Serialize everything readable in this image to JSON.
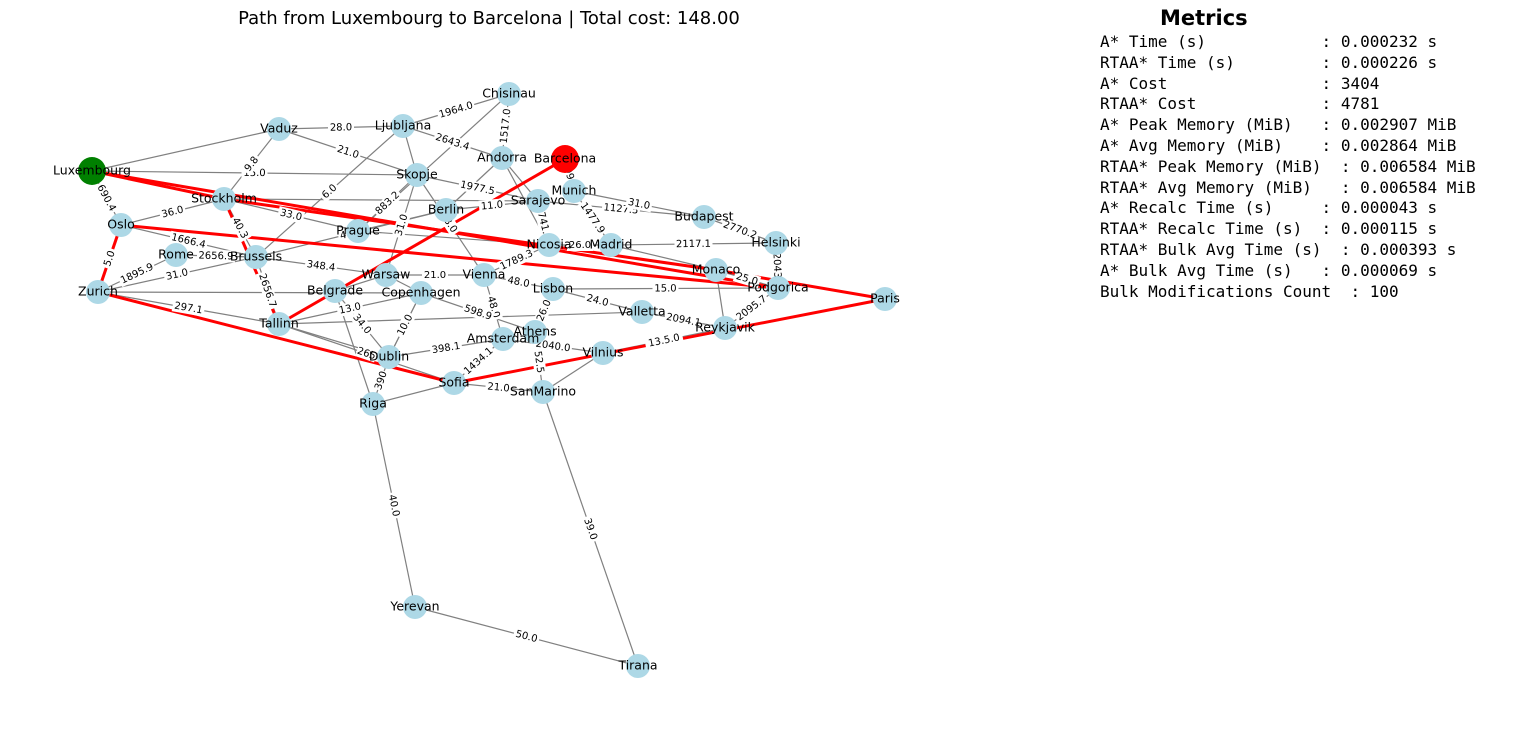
{
  "title": "Path from Luxembourg to Barcelona | Total cost: 148.00",
  "metrics": {
    "heading": "Metrics",
    "rows": [
      {
        "label": "A* Time (s)           ",
        "value": ": 0.000232 s"
      },
      {
        "label": "RTAA* Time (s)        ",
        "value": ": 0.000226 s"
      },
      {
        "label": "A* Cost               ",
        "value": ": 3404"
      },
      {
        "label": "RTAA* Cost            ",
        "value": ": 4781"
      },
      {
        "label": "A* Peak Memory (MiB)  ",
        "value": ": 0.002907 MiB"
      },
      {
        "label": "A* Avg Memory (MiB)   ",
        "value": ": 0.002864 MiB"
      },
      {
        "label": "RTAA* Peak Memory (MiB)",
        "value": " : 0.006584 MiB"
      },
      {
        "label": "RTAA* Avg Memory (MiB) ",
        "value": " : 0.006584 MiB"
      },
      {
        "label": "A* Recalc Time (s)    ",
        "value": ": 0.000043 s"
      },
      {
        "label": "RTAA* Recalc Time (s) ",
        "value": ": 0.000115 s"
      },
      {
        "label": "RTAA* Bulk Avg Time (s)",
        "value": " : 0.000393 s"
      },
      {
        "label": "A* Bulk Avg Time (s)  ",
        "value": ": 0.000069 s"
      },
      {
        "label": "Bulk Modifications Count",
        "value": " : 100"
      }
    ]
  },
  "colors": {
    "node": "#add8e6",
    "start": "#008000",
    "goal": "#ff0000",
    "edge": "#808080",
    "path": "#ff0000"
  },
  "graph": {
    "start": "Luxembourg",
    "goal": "Barcelona",
    "nodes": [
      "Luxembourg",
      "Vaduz",
      "Ljubljana",
      "Chisinau",
      "Andorra",
      "Barcelona",
      "Skopje",
      "Stockholm",
      "Oslo",
      "Berlin",
      "Sarajevo",
      "Munich",
      "Budapest",
      "Helsinki",
      "Prague",
      "Rome",
      "Brussels",
      "Nicosia",
      "Madrid",
      "Monaco",
      "Zurich",
      "Warsaw",
      "Vienna",
      "Belgrade",
      "Copenhagen",
      "Lisbon",
      "Podgorica",
      "Paris",
      "Tallinn",
      "Valletta",
      "Reykjavik",
      "Athens",
      "Amsterdam",
      "Dublin",
      "Vilnius",
      "Sofia",
      "SanMarino",
      "Riga",
      "Yerevan",
      "Tirana"
    ],
    "edges": [
      {
        "from": "Luxembourg",
        "to": "Oslo",
        "label": "690.4"
      },
      {
        "from": "Luxembourg",
        "to": "Vaduz",
        "label": ""
      },
      {
        "from": "Luxembourg",
        "to": "Skopje",
        "label": "15.0"
      },
      {
        "from": "Vaduz",
        "to": "Ljubljana",
        "label": "28.0"
      },
      {
        "from": "Vaduz",
        "to": "Stockholm",
        "label": "9.8"
      },
      {
        "from": "Vaduz",
        "to": "Skopje",
        "label": "21.0"
      },
      {
        "from": "Ljubljana",
        "to": "Chisinau",
        "label": "1964.0"
      },
      {
        "from": "Ljubljana",
        "to": "Andorra",
        "label": "2643.4"
      },
      {
        "from": "Ljubljana",
        "to": "Skopje",
        "label": ""
      },
      {
        "from": "Ljubljana",
        "to": "Brussels",
        "label": "6.0"
      },
      {
        "from": "Chisinau",
        "to": "Andorra",
        "label": "1517.0"
      },
      {
        "from": "Chisinau",
        "to": "Prague",
        "label": ""
      },
      {
        "from": "Skopje",
        "to": "Sarajevo",
        "label": "1977.5"
      },
      {
        "from": "Skopje",
        "to": "Prague",
        "label": "883.2"
      },
      {
        "from": "Skopje",
        "to": "Warsaw",
        "label": "31.0"
      },
      {
        "from": "Skopje",
        "to": "Vienna",
        "label": "8.0"
      },
      {
        "from": "Andorra",
        "to": "Sarajevo",
        "label": ""
      },
      {
        "from": "Andorra",
        "to": "Nicosia",
        "label": ""
      },
      {
        "from": "Andorra",
        "to": "Berlin",
        "label": ""
      },
      {
        "from": "Barcelona",
        "to": "Munich",
        "label": "199.3"
      },
      {
        "from": "Stockholm",
        "to": "Oslo",
        "label": "36.0"
      },
      {
        "from": "Stockholm",
        "to": "Brussels",
        "label": "40.3"
      },
      {
        "from": "Stockholm",
        "to": "Prague",
        "label": "33.0"
      },
      {
        "from": "Stockholm",
        "to": "Sarajevo",
        "label": ""
      },
      {
        "from": "Oslo",
        "to": "Brussels",
        "label": "1666.4"
      },
      {
        "from": "Oslo",
        "to": "Zurich",
        "label": "5.0"
      },
      {
        "from": "Rome",
        "to": "Zurich",
        "label": "1895.9"
      },
      {
        "from": "Rome",
        "to": "Brussels",
        "label": "2656.9"
      },
      {
        "from": "Brussels",
        "to": "Zurich",
        "label": "31.0"
      },
      {
        "from": "Brussels",
        "to": "Warsaw",
        "label": "348.4"
      },
      {
        "from": "Brussels",
        "to": "Berlin",
        "label": "41.0"
      },
      {
        "from": "Brussels",
        "to": "Tallinn",
        "label": "2656.7"
      },
      {
        "from": "Zurich",
        "to": "Tallinn",
        "label": "297.1"
      },
      {
        "from": "Zurich",
        "to": "Copenhagen",
        "label": ""
      },
      {
        "from": "Prague",
        "to": "Berlin",
        "label": ""
      },
      {
        "from": "Prague",
        "to": "Nicosia",
        "label": ""
      },
      {
        "from": "Berlin",
        "to": "Sarajevo",
        "label": "11.0"
      },
      {
        "from": "Sarajevo",
        "to": "Budapest",
        "label": "1127.5"
      },
      {
        "from": "Sarajevo",
        "to": "Nicosia",
        "label": "1741.2"
      },
      {
        "from": "Munich",
        "to": "Budapest",
        "label": "31.0"
      },
      {
        "from": "Munich",
        "to": "Madrid",
        "label": "1477.9"
      },
      {
        "from": "Budapest",
        "to": "Helsinki",
        "label": "2770.2"
      },
      {
        "from": "Madrid",
        "to": "Helsinki",
        "label": "2117.1"
      },
      {
        "from": "Madrid",
        "to": "Monaco",
        "label": ""
      },
      {
        "from": "Helsinki",
        "to": "Podgorica",
        "label": "2043"
      },
      {
        "from": "Nicosia",
        "to": "Madrid",
        "label": "26.0"
      },
      {
        "from": "Nicosia",
        "to": "Vienna",
        "label": "1789.3"
      },
      {
        "from": "Monaco",
        "to": "Podgorica",
        "label": "25.0"
      },
      {
        "from": "Monaco",
        "to": "Reykjavik",
        "label": ""
      },
      {
        "from": "Podgorica",
        "to": "Reykjavik",
        "label": "2095.7"
      },
      {
        "from": "Warsaw",
        "to": "Vienna",
        "label": "21.0"
      },
      {
        "from": "Warsaw",
        "to": "Belgrade",
        "label": ""
      },
      {
        "from": "Warsaw",
        "to": "Copenhagen",
        "label": ""
      },
      {
        "from": "Vienna",
        "to": "Lisbon",
        "label": "48.0"
      },
      {
        "from": "Vienna",
        "to": "Amsterdam",
        "label": "48.0"
      },
      {
        "from": "Lisbon",
        "to": "Valletta",
        "label": "24.0"
      },
      {
        "from": "Lisbon",
        "to": "Podgorica",
        "label": "15.0"
      },
      {
        "from": "Valletta",
        "to": "Reykjavik",
        "label": "2094.1"
      },
      {
        "from": "Copenhagen",
        "to": "Tallinn",
        "label": "13.0"
      },
      {
        "from": "Copenhagen",
        "to": "Dublin",
        "label": "22.0"
      },
      {
        "from": "Copenhagen",
        "to": "Athens",
        "label": "598.9"
      },
      {
        "from": "Belgrade",
        "to": "Dublin",
        "label": "34.0"
      },
      {
        "from": "Belgrade",
        "to": "Riga",
        "label": ""
      },
      {
        "from": "Tallinn",
        "to": "Dublin",
        "label": ""
      },
      {
        "from": "Tallinn",
        "to": "Valletta",
        "label": ""
      },
      {
        "from": "Tallinn",
        "to": "Sofia",
        "label": "265"
      },
      {
        "from": "Dublin",
        "to": "Riga",
        "label": "390"
      },
      {
        "from": "Dublin",
        "to": "Amsterdam",
        "label": "398.1"
      },
      {
        "from": "Dublin",
        "to": "Copenhagen",
        "label": "10.0"
      },
      {
        "from": "Amsterdam",
        "to": "Sofia",
        "label": "1434.1"
      },
      {
        "from": "Amsterdam",
        "to": "Vilnius",
        "label": "2040.0"
      },
      {
        "from": "Athens",
        "to": "SanMarino",
        "label": "52.5"
      },
      {
        "from": "Athens",
        "to": "Lisbon",
        "label": "26.0"
      },
      {
        "from": "Vilnius",
        "to": "SanMarino",
        "label": ""
      },
      {
        "from": "Vilnius",
        "to": "Reykjavik",
        "label": "13.5.0"
      },
      {
        "from": "Sofia",
        "to": "SanMarino",
        "label": "21.0"
      },
      {
        "from": "Sofia",
        "to": "Riga",
        "label": ""
      },
      {
        "from": "Riga",
        "to": "Yerevan",
        "label": "40.0"
      },
      {
        "from": "SanMarino",
        "to": "Tirana",
        "label": "39.0"
      },
      {
        "from": "Yerevan",
        "to": "Tirana",
        "label": "50.0"
      }
    ],
    "path_edges": [
      {
        "from": "Luxembourg",
        "to": "Podgorica"
      },
      {
        "from": "Luxembourg",
        "to": "Stockholm"
      },
      {
        "from": "Stockholm",
        "to": "Monaco"
      },
      {
        "from": "Stockholm",
        "to": "Tallinn"
      },
      {
        "from": "Oslo",
        "to": "Podgorica"
      },
      {
        "from": "Oslo",
        "to": "Zurich"
      },
      {
        "from": "Zurich",
        "to": "Sofia"
      },
      {
        "from": "Sofia",
        "to": "Paris"
      },
      {
        "from": "Monaco",
        "to": "Paris"
      },
      {
        "from": "Tallinn",
        "to": "Barcelona"
      }
    ]
  }
}
